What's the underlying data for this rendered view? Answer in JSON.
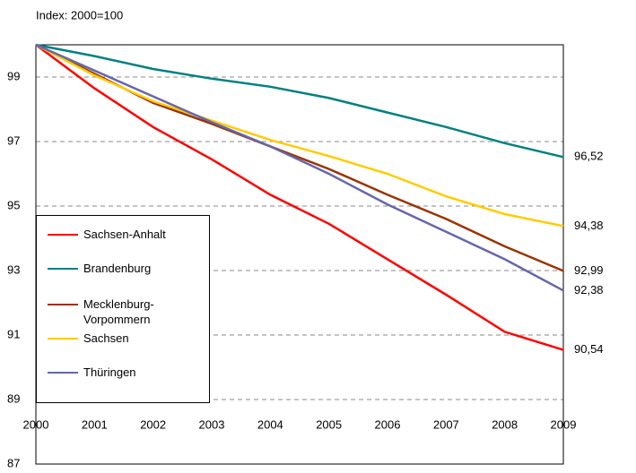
{
  "chart_data": {
    "type": "line",
    "title": "Index: 2000=100",
    "categories": [
      "2000",
      "2001",
      "2002",
      "2003",
      "2004",
      "2005",
      "2006",
      "2007",
      "2008",
      "2009"
    ],
    "series": [
      {
        "name": "Sachsen-Anhalt",
        "color": "#ff0000",
        "values": [
          100,
          98.65,
          97.45,
          96.45,
          95.35,
          94.45,
          93.35,
          92.25,
          91.1,
          90.54
        ],
        "value_labels": [
          null,
          null,
          null,
          null,
          null,
          null,
          null,
          null,
          null,
          "90,54"
        ]
      },
      {
        "name": "Brandenburg",
        "color": "#008080",
        "values": [
          100,
          99.65,
          99.25,
          98.95,
          98.7,
          98.35,
          97.9,
          97.45,
          96.95,
          96.52
        ],
        "value_labels": [
          null,
          null,
          null,
          null,
          null,
          null,
          null,
          null,
          null,
          "96,52"
        ]
      },
      {
        "name": "Mecklenburg-Vorpommern",
        "color": "#993300",
        "values": [
          100,
          99.1,
          98.2,
          97.55,
          96.85,
          96.15,
          95.35,
          94.6,
          93.75,
          92.99
        ],
        "value_labels": [
          null,
          null,
          null,
          null,
          null,
          null,
          null,
          null,
          null,
          "92,99"
        ]
      },
      {
        "name": "Sachsen",
        "color": "#ffcc00",
        "values": [
          100,
          99.05,
          98.25,
          97.65,
          97.05,
          96.55,
          96.0,
          95.3,
          94.75,
          94.38
        ],
        "value_labels": [
          null,
          null,
          null,
          null,
          null,
          null,
          null,
          null,
          null,
          "94,38"
        ]
      },
      {
        "name": "Thüringen",
        "color": "#6666aa",
        "values": [
          100,
          99.2,
          98.4,
          97.6,
          96.85,
          96.0,
          95.05,
          94.2,
          93.35,
          92.38
        ],
        "value_labels": [
          null,
          null,
          null,
          null,
          null,
          null,
          null,
          null,
          null,
          "92,38"
        ]
      }
    ],
    "ylim": [
      87,
      100
    ],
    "yticks": [
      87,
      89,
      91,
      93,
      95,
      97,
      99
    ],
    "grid": true
  }
}
